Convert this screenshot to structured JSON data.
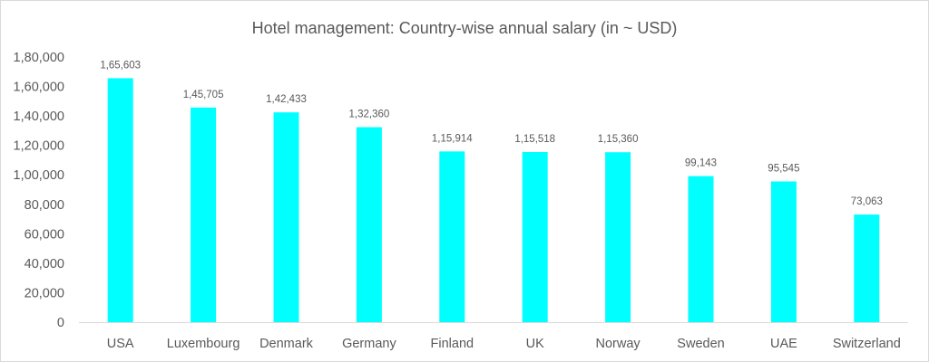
{
  "chart_data": {
    "type": "bar",
    "title": "Hotel management: Country-wise annual salary (in ~ USD)",
    "xlabel": "",
    "ylabel": "",
    "categories": [
      "USA",
      "Luxembourg",
      "Denmark",
      "Germany",
      "Finland",
      "UK",
      "Norway",
      "Sweden",
      "UAE",
      "Switzerland"
    ],
    "values": [
      165603,
      145705,
      142433,
      132360,
      115914,
      115518,
      115360,
      99143,
      95545,
      73063
    ],
    "value_labels": [
      "1,65,603",
      "1,45,705",
      "1,42,433",
      "1,32,360",
      "1,15,914",
      "1,15,518",
      "1,15,360",
      "99,143",
      "95,545",
      "73,063"
    ],
    "ylim": [
      0,
      180000
    ],
    "yticks": [
      0,
      20000,
      40000,
      60000,
      80000,
      100000,
      120000,
      140000,
      160000,
      180000
    ],
    "ytick_labels": [
      "0",
      "20,000",
      "40,000",
      "60,000",
      "80,000",
      "1,00,000",
      "1,20,000",
      "1,40,000",
      "1,60,000",
      "1,80,000"
    ],
    "grid": false,
    "legend": "none",
    "bar_color": "#00FFFF",
    "axis_color": "#d9d9d9"
  }
}
